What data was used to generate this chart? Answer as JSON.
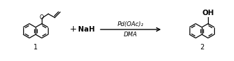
{
  "bg_color": "#ffffff",
  "fig_width": 3.42,
  "fig_height": 0.89,
  "dpi": 100,
  "compound1_label": "1",
  "compound2_label": "2",
  "plus_text": "+",
  "reagent1_text": "NaH",
  "arrow_above": "Pd(OAc)₂",
  "arrow_below": "DMA",
  "oh_label": "OH",
  "o_label": "O"
}
